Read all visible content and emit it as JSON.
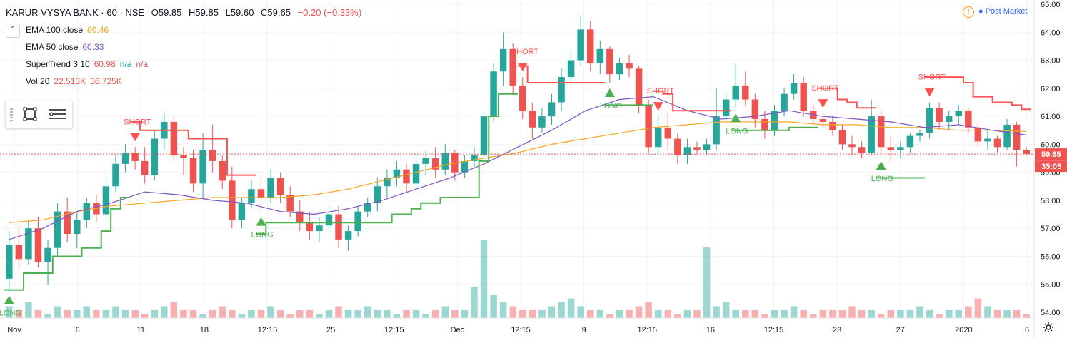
{
  "symbol": {
    "title": "KARUR VYSYA BANK · 60 · NSE",
    "ohlc": [
      {
        "label": "O",
        "value": "59.85"
      },
      {
        "label": "H",
        "value": "59.85"
      },
      {
        "label": "L",
        "value": "59.60"
      },
      {
        "label": "C",
        "value": "59.65"
      }
    ],
    "change": "−0.20 (−0.33%)"
  },
  "legend": [
    {
      "name": "EMA 100 close",
      "value": "60.46",
      "color": "#f5a623"
    },
    {
      "name": "EMA 50 close",
      "value": "60.33",
      "color": "#7e57c2"
    },
    {
      "name": "SuperTrend 3 10",
      "value": "60.98",
      "extra1": "n/a",
      "extra2": "n/a",
      "color": "#ef5350",
      "color2": "#26a69a"
    },
    {
      "name": "Vol 20",
      "value": "22.513K",
      "extra1": "36.725K",
      "color": "#ef5350"
    }
  ],
  "market_status": "Post Market",
  "price_badge": "59.65",
  "timer_badge": "35:05",
  "colors": {
    "up": "#26a69a",
    "down": "#ef5350",
    "supertrend_up": "#4caf50",
    "supertrend_down": "#ff5252",
    "ema100": "#f5a623",
    "ema50": "#7e57c2"
  },
  "chart_data": {
    "type": "candlestick",
    "y_ticks": [
      "65.00",
      "64.00",
      "63.00",
      "62.00",
      "61.00",
      "60.00",
      "59.00",
      "58.00",
      "57.00",
      "56.00",
      "55.00",
      "54.00"
    ],
    "ylim": [
      54.0,
      65.0
    ],
    "x_ticks": [
      "Nov",
      "6",
      "11",
      "18",
      "12:15",
      "25",
      "12:15",
      "Dec",
      "12:15",
      "9",
      "12:15",
      "16",
      "12:15",
      "23",
      "27",
      "2020",
      "6"
    ],
    "last_price": 59.65,
    "candles": [
      [
        55.2,
        56.9,
        54.8,
        56.4
      ],
      [
        56.4,
        57.1,
        55.5,
        55.9
      ],
      [
        55.9,
        57.3,
        55.7,
        57.0
      ],
      [
        57.0,
        57.4,
        55.6,
        55.8
      ],
      [
        55.8,
        56.6,
        55.0,
        56.3
      ],
      [
        56.3,
        57.9,
        56.0,
        57.6
      ],
      [
        57.6,
        58.1,
        56.5,
        56.8
      ],
      [
        56.8,
        57.6,
        56.3,
        57.3
      ],
      [
        57.3,
        58.1,
        57.0,
        57.9
      ],
      [
        57.9,
        58.2,
        57.2,
        57.5
      ],
      [
        57.5,
        58.9,
        57.3,
        58.5
      ],
      [
        58.5,
        59.6,
        58.3,
        59.3
      ],
      [
        59.3,
        60.0,
        59.0,
        59.7
      ],
      [
        59.7,
        59.9,
        59.1,
        59.4
      ],
      [
        59.4,
        59.9,
        58.6,
        58.9
      ],
      [
        58.9,
        60.5,
        58.7,
        60.2
      ],
      [
        60.2,
        61.1,
        59.8,
        60.8
      ],
      [
        60.8,
        61.0,
        59.4,
        59.6
      ],
      [
        59.6,
        59.9,
        58.9,
        59.5
      ],
      [
        59.5,
        59.8,
        58.3,
        58.6
      ],
      [
        58.6,
        60.4,
        58.1,
        59.8
      ],
      [
        59.8,
        60.7,
        59.0,
        59.4
      ],
      [
        59.4,
        59.6,
        58.4,
        58.7
      ],
      [
        58.7,
        59.2,
        57.0,
        57.3
      ],
      [
        57.3,
        58.1,
        57.0,
        57.9
      ],
      [
        57.9,
        58.7,
        57.7,
        58.4
      ],
      [
        58.4,
        58.9,
        57.6,
        58.1
      ],
      [
        58.1,
        59.1,
        57.9,
        58.8
      ],
      [
        58.8,
        59.0,
        57.9,
        58.2
      ],
      [
        58.2,
        58.5,
        57.4,
        57.6
      ],
      [
        57.6,
        58.0,
        56.9,
        57.2
      ],
      [
        57.2,
        57.6,
        56.6,
        56.9
      ],
      [
        56.9,
        57.4,
        56.5,
        57.1
      ],
      [
        57.1,
        57.8,
        56.9,
        57.5
      ],
      [
        57.5,
        57.8,
        56.3,
        56.6
      ],
      [
        56.6,
        57.1,
        56.2,
        56.9
      ],
      [
        56.9,
        57.8,
        56.7,
        57.6
      ],
      [
        57.6,
        58.1,
        57.4,
        57.9
      ],
      [
        57.9,
        58.8,
        57.6,
        58.5
      ],
      [
        58.5,
        59.1,
        58.1,
        58.8
      ],
      [
        58.8,
        59.4,
        58.5,
        59.1
      ],
      [
        59.1,
        59.3,
        58.3,
        58.6
      ],
      [
        58.6,
        59.6,
        58.4,
        59.3
      ],
      [
        59.3,
        59.8,
        58.9,
        59.5
      ],
      [
        59.5,
        59.9,
        58.8,
        59.1
      ],
      [
        59.1,
        60.0,
        58.9,
        59.7
      ],
      [
        59.7,
        59.8,
        58.7,
        59.0
      ],
      [
        59.0,
        59.6,
        58.8,
        59.4
      ],
      [
        59.4,
        59.9,
        59.2,
        59.6
      ],
      [
        59.6,
        61.2,
        59.4,
        61.0
      ],
      [
        61.0,
        62.9,
        60.8,
        62.6
      ],
      [
        62.6,
        64.0,
        62.1,
        63.4
      ],
      [
        63.4,
        63.6,
        61.8,
        62.1
      ],
      [
        62.1,
        62.4,
        60.9,
        61.2
      ],
      [
        61.2,
        61.5,
        60.2,
        60.6
      ],
      [
        60.6,
        61.3,
        60.4,
        61.0
      ],
      [
        61.0,
        61.8,
        60.7,
        61.5
      ],
      [
        61.5,
        62.7,
        61.2,
        62.4
      ],
      [
        62.4,
        63.3,
        62.1,
        63.0
      ],
      [
        63.0,
        64.6,
        62.8,
        64.1
      ],
      [
        64.1,
        64.4,
        62.6,
        62.9
      ],
      [
        62.9,
        63.7,
        62.5,
        63.4
      ],
      [
        63.4,
        63.5,
        62.2,
        62.5
      ],
      [
        62.5,
        63.1,
        62.3,
        62.9
      ],
      [
        62.9,
        63.2,
        62.4,
        62.7
      ],
      [
        62.7,
        62.8,
        61.1,
        61.4
      ],
      [
        61.4,
        61.6,
        59.7,
        59.9
      ],
      [
        59.9,
        61.0,
        59.6,
        60.6
      ],
      [
        60.6,
        61.1,
        59.8,
        60.2
      ],
      [
        60.2,
        60.4,
        59.3,
        59.6
      ],
      [
        59.6,
        60.2,
        59.3,
        59.9
      ],
      [
        59.9,
        60.1,
        59.6,
        59.8
      ],
      [
        59.8,
        60.2,
        59.6,
        60.0
      ],
      [
        60.0,
        62.0,
        59.8,
        61.0
      ],
      [
        61.0,
        61.8,
        60.8,
        61.6
      ],
      [
        61.6,
        62.9,
        61.3,
        62.1
      ],
      [
        62.1,
        62.6,
        61.4,
        61.6
      ],
      [
        61.6,
        61.8,
        60.6,
        60.9
      ],
      [
        60.9,
        61.2,
        60.2,
        60.5
      ],
      [
        60.5,
        61.4,
        60.3,
        61.2
      ],
      [
        61.2,
        62.0,
        61.0,
        61.8
      ],
      [
        61.8,
        62.5,
        61.6,
        62.2
      ],
      [
        62.2,
        62.4,
        61.0,
        61.2
      ],
      [
        61.2,
        61.4,
        60.7,
        60.9
      ],
      [
        60.9,
        61.1,
        60.6,
        60.8
      ],
      [
        60.8,
        61.0,
        60.3,
        60.5
      ],
      [
        60.5,
        60.7,
        59.8,
        60.0
      ],
      [
        60.0,
        60.3,
        59.6,
        59.9
      ],
      [
        59.9,
        60.1,
        59.5,
        59.7
      ],
      [
        59.7,
        61.6,
        59.6,
        61.0
      ],
      [
        61.0,
        61.2,
        59.6,
        59.9
      ],
      [
        59.9,
        60.3,
        59.4,
        59.8
      ],
      [
        59.8,
        60.1,
        59.5,
        59.9
      ],
      [
        59.9,
        60.4,
        59.7,
        60.3
      ],
      [
        60.3,
        60.5,
        60.1,
        60.4
      ],
      [
        60.4,
        61.5,
        60.2,
        61.3
      ],
      [
        61.3,
        61.5,
        60.5,
        60.8
      ],
      [
        60.8,
        61.2,
        60.5,
        61.0
      ],
      [
        61.0,
        61.4,
        60.7,
        61.2
      ],
      [
        61.2,
        61.3,
        60.4,
        60.6
      ],
      [
        60.6,
        60.8,
        59.9,
        60.1
      ],
      [
        60.1,
        60.5,
        59.8,
        60.2
      ],
      [
        60.2,
        60.3,
        59.7,
        59.9
      ],
      [
        59.9,
        60.9,
        59.8,
        60.7
      ],
      [
        60.7,
        60.8,
        59.2,
        59.8
      ],
      [
        59.8,
        59.9,
        59.6,
        59.65
      ]
    ],
    "ema100": [
      57.2,
      57.3,
      57.6,
      57.8,
      57.9,
      58.0,
      58.1,
      58.1,
      58.1,
      58.2,
      58.4,
      58.7,
      59.0,
      59.3,
      59.5,
      59.7,
      60.0,
      60.2,
      60.4,
      60.6,
      60.7,
      60.8,
      60.8,
      60.8,
      60.7,
      60.7,
      60.6,
      60.6,
      60.5,
      60.5,
      60.46
    ],
    "ema50": [
      56.6,
      57.0,
      57.6,
      57.9,
      58.3,
      58.2,
      58.0,
      57.9,
      57.6,
      57.5,
      57.7,
      58.0,
      58.4,
      58.8,
      59.3,
      59.9,
      60.5,
      61.2,
      61.6,
      61.7,
      61.2,
      60.9,
      61.0,
      61.2,
      61.0,
      60.9,
      60.8,
      60.6,
      60.7,
      60.5,
      60.33
    ],
    "volume": [
      3,
      2,
      4,
      2,
      1,
      3,
      2,
      2,
      3,
      2,
      2,
      3,
      2,
      2,
      1,
      2,
      3,
      4,
      2,
      2,
      1,
      2,
      3,
      2,
      1,
      2,
      2,
      3,
      2,
      1,
      2,
      2,
      1,
      2,
      3,
      2,
      2,
      3,
      2,
      2,
      1,
      2,
      2,
      1,
      2,
      3,
      2,
      2,
      8,
      20,
      6,
      4,
      3,
      2,
      2,
      2,
      3,
      4,
      5,
      3,
      2,
      2,
      1,
      2,
      2,
      3,
      4,
      2,
      2,
      1,
      2,
      2,
      18,
      3,
      4,
      2,
      2,
      2,
      1,
      2,
      2,
      3,
      2,
      1,
      2,
      2,
      2,
      3,
      2,
      2,
      1,
      2,
      2,
      2,
      3,
      2,
      1,
      2,
      2,
      3,
      5,
      3,
      2,
      2,
      2,
      1
    ]
  },
  "signals": [
    {
      "type": "LONG",
      "label": "LONG"
    },
    {
      "type": "SHORT",
      "label": "SHORT"
    },
    {
      "type": "LONG",
      "label": "LONG"
    },
    {
      "type": "SHORT",
      "label": "SHORT"
    },
    {
      "type": "LONG",
      "label": "LONG"
    },
    {
      "type": "SHORT",
      "label": "SHORT"
    },
    {
      "type": "LONG",
      "label": "LONG"
    },
    {
      "type": "SHORT",
      "label": "SHORT"
    },
    {
      "type": "LONG",
      "label": "LONG"
    },
    {
      "type": "SHORT",
      "label": "SHORT"
    }
  ]
}
